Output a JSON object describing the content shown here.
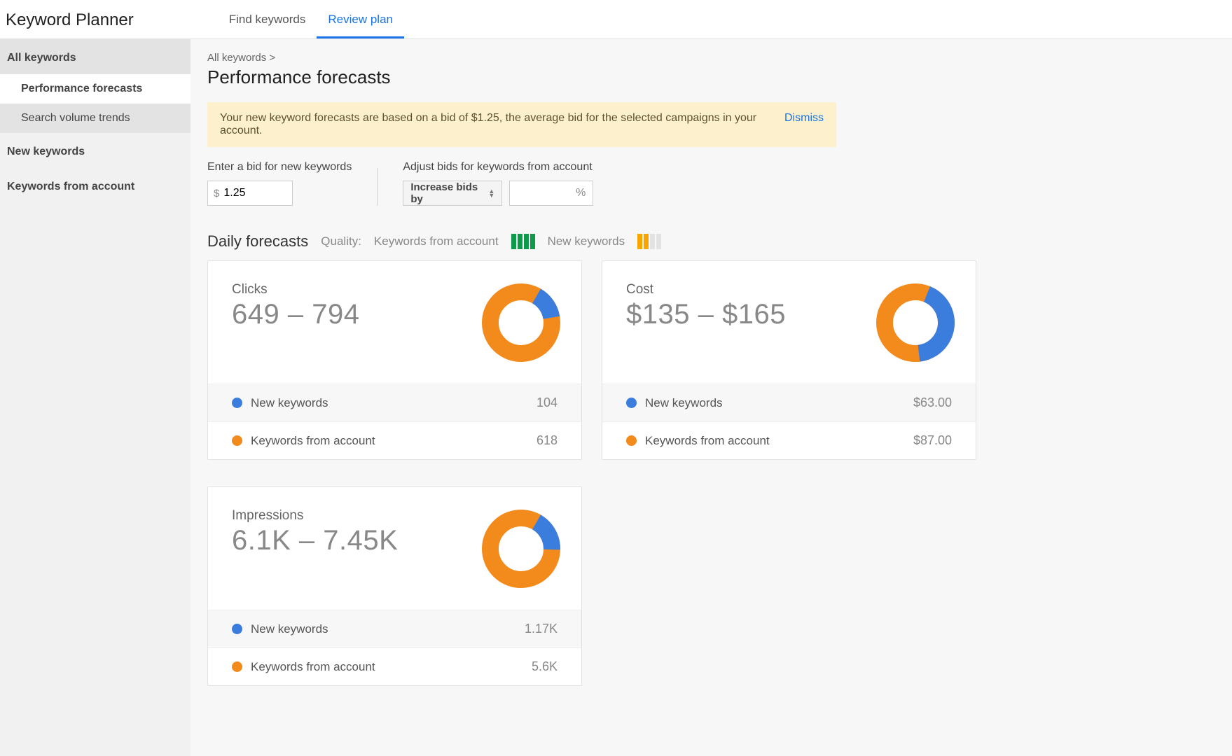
{
  "header": {
    "title": "Keyword Planner",
    "tabs": [
      {
        "label": "Find keywords",
        "active": false
      },
      {
        "label": "Review plan",
        "active": true
      }
    ]
  },
  "sidebar": {
    "group_top": {
      "header": "All keywords",
      "items": [
        {
          "label": "Performance forecasts",
          "selected": true
        },
        {
          "label": "Search volume trends",
          "selected": false
        }
      ]
    },
    "items_below": [
      "New keywords",
      "Keywords from account"
    ]
  },
  "breadcrumb": "All keywords >",
  "page_title": "Performance forecasts",
  "notice": {
    "text": "Your new keyword forecasts are based on a bid of $1.25, the average bid for the selected campaigns in your account.",
    "dismiss": "Dismiss"
  },
  "bid": {
    "enter_label": "Enter a bid for new keywords",
    "currency": "$",
    "value": "1.25",
    "adjust_label": "Adjust bids for keywords from account",
    "select_label": "Increase bids by",
    "pct_suffix": "%"
  },
  "forecasts": {
    "section_title": "Daily forecasts",
    "quality_label": "Quality:",
    "legend": [
      {
        "label": "Keywords from account",
        "color": "#0d9b4b",
        "filled": 4,
        "total": 4
      },
      {
        "label": "New keywords",
        "color": "#f7a500",
        "filled": 2,
        "total": 4
      }
    ]
  },
  "colors": {
    "blue": "#3b7ddd",
    "orange": "#f28a1c",
    "card_border": "#e2e2e2",
    "muted_bar": "#e2e2e2"
  },
  "cards": [
    {
      "metric": "Clicks",
      "value": "649 – 794",
      "donut": {
        "blue_pct": 14,
        "start_deg": -60
      },
      "rows": [
        {
          "label": "New keywords",
          "value": "104",
          "color": "#3b7ddd"
        },
        {
          "label": "Keywords from account",
          "value": "618",
          "color": "#f28a1c"
        }
      ]
    },
    {
      "metric": "Cost",
      "value": "$135 – $165",
      "donut": {
        "blue_pct": 42,
        "start_deg": -68
      },
      "rows": [
        {
          "label": "New keywords",
          "value": "$63.00",
          "color": "#3b7ddd"
        },
        {
          "label": "Keywords from account",
          "value": "$87.00",
          "color": "#f28a1c"
        }
      ]
    },
    {
      "metric": "Impressions",
      "value": "6.1K – 7.45K",
      "donut": {
        "blue_pct": 17,
        "start_deg": -60
      },
      "rows": [
        {
          "label": "New keywords",
          "value": "1.17K",
          "color": "#3b7ddd"
        },
        {
          "label": "Keywords from account",
          "value": "5.6K",
          "color": "#f28a1c"
        }
      ]
    }
  ]
}
